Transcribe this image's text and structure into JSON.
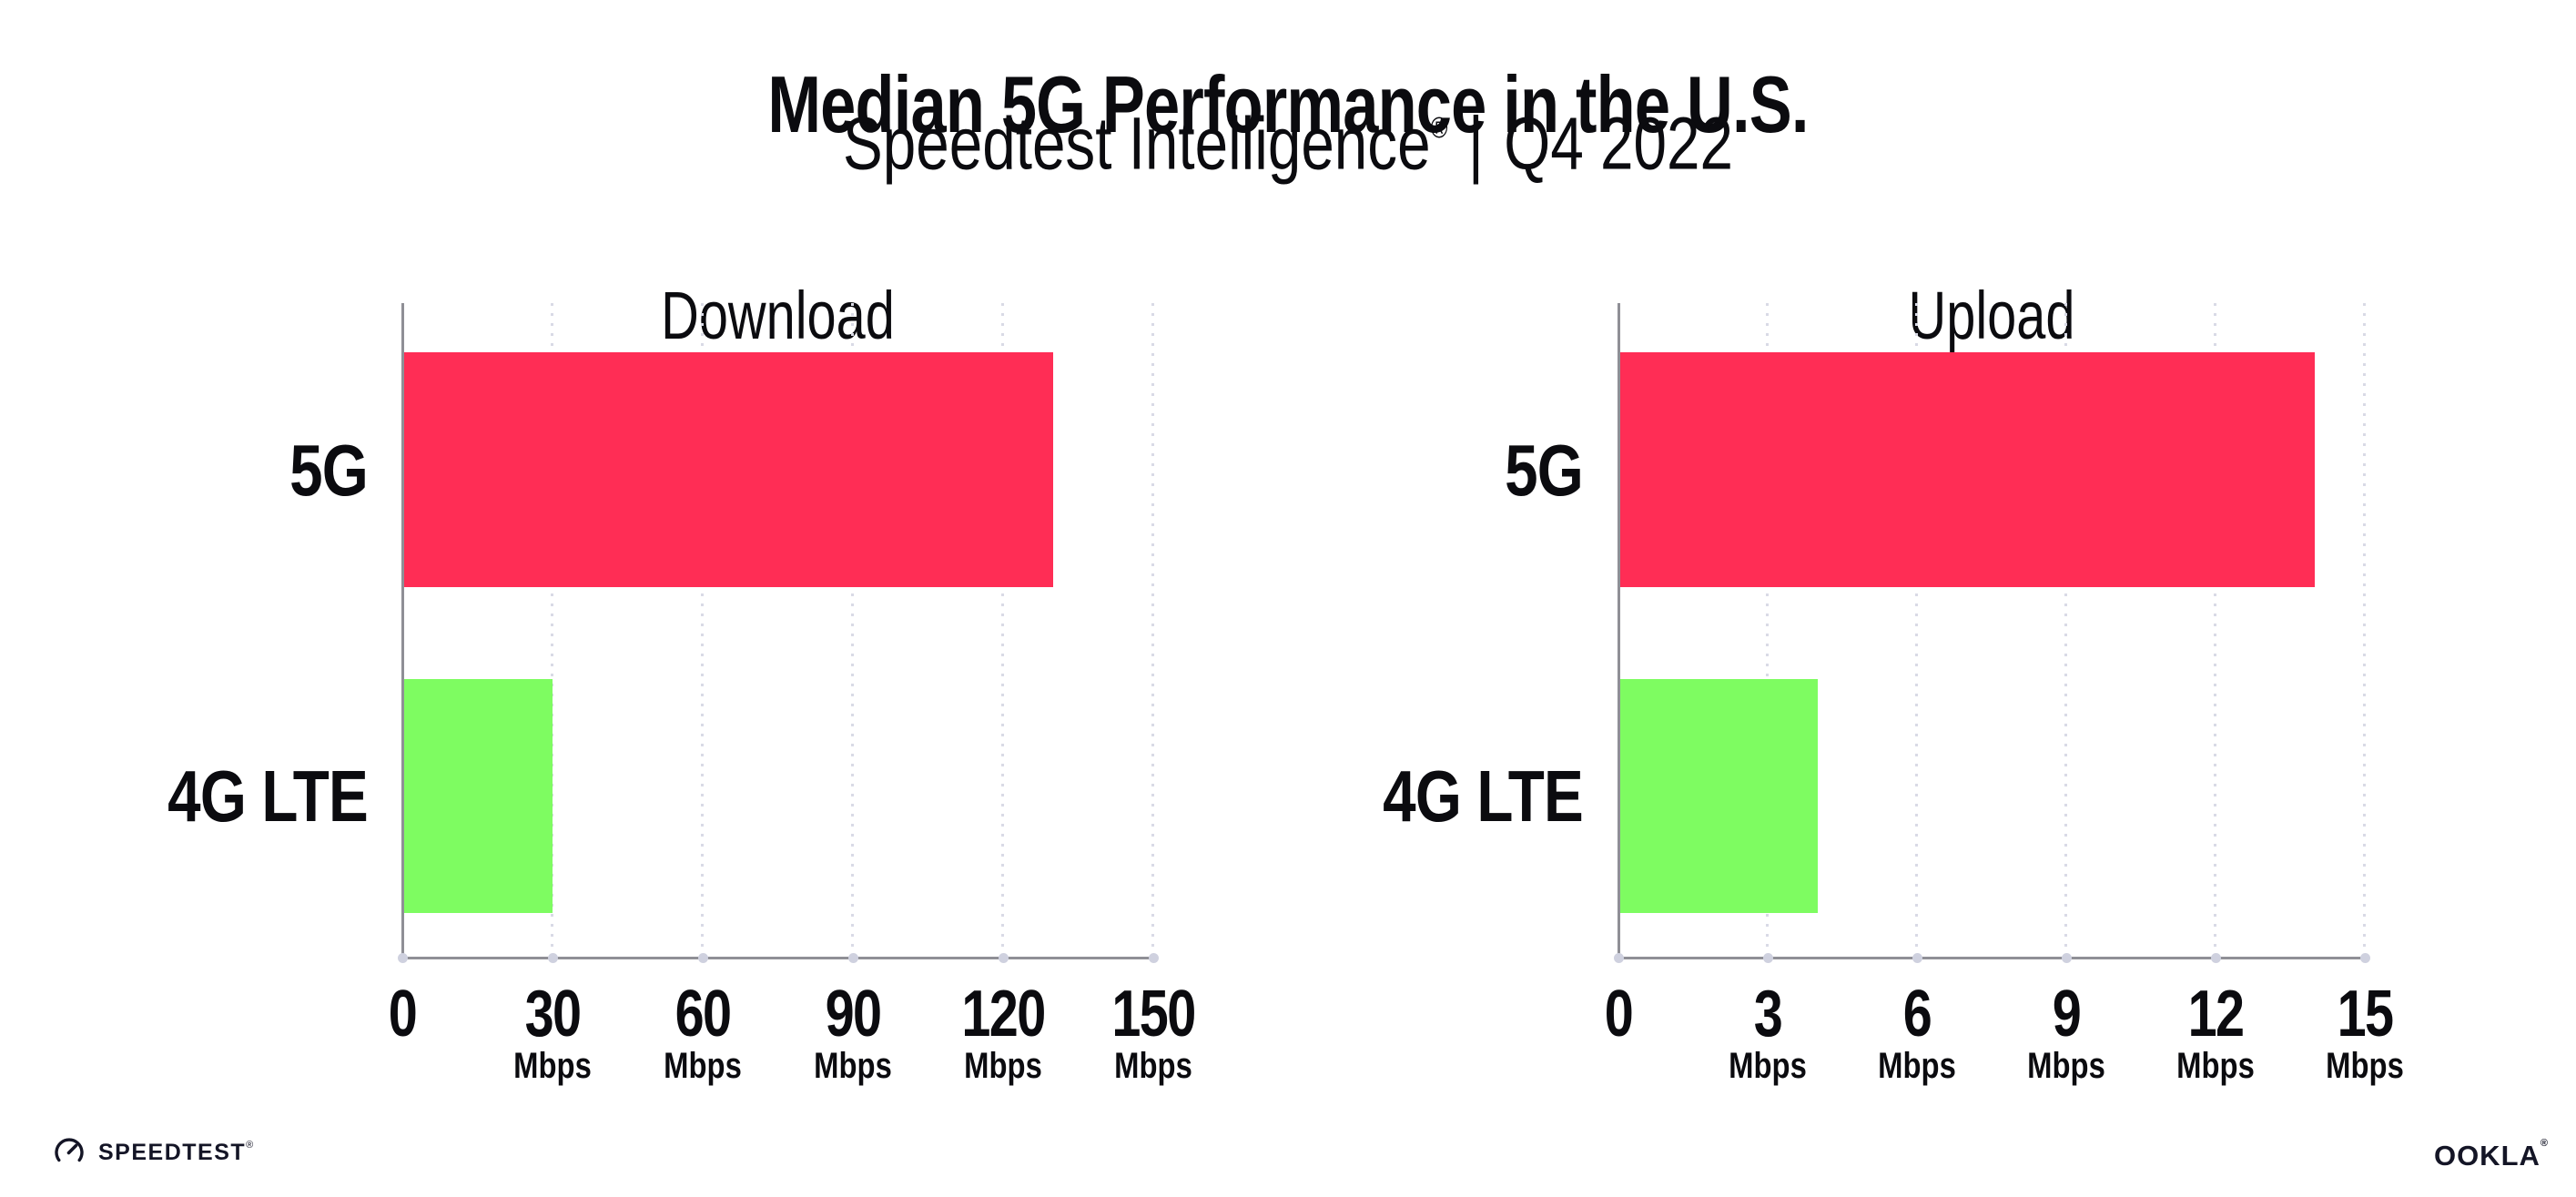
{
  "header": {
    "title": "Median 5G Performance in the U.S.",
    "subtitle": {
      "brand": "Speedtest Intelligence",
      "registered_mark": "®",
      "separator": "|",
      "period": "Q4 2022"
    }
  },
  "chart_data": [
    {
      "type": "bar",
      "orientation": "horizontal",
      "title": "Download",
      "categories": [
        "5G",
        "4G LTE"
      ],
      "values": [
        130,
        30
      ],
      "unit": "Mbps",
      "xlim": [
        0,
        150
      ],
      "xticks": [
        0,
        30,
        60,
        90,
        120,
        150
      ],
      "bar_colors": [
        "#ff2d55",
        "#7efc61"
      ],
      "grid": "dotted-vertical",
      "legend": "none"
    },
    {
      "type": "bar",
      "orientation": "horizontal",
      "title": "Upload",
      "categories": [
        "5G",
        "4G LTE"
      ],
      "values": [
        14,
        4
      ],
      "unit": "Mbps",
      "xlim": [
        0,
        15
      ],
      "xticks": [
        0,
        3,
        6,
        9,
        12,
        15
      ],
      "bar_colors": [
        "#ff2d55",
        "#7efc61"
      ],
      "grid": "dotted-vertical",
      "legend": "none"
    }
  ],
  "footer": {
    "speedtest_text": "SPEEDTEST",
    "speedtest_mark": "®",
    "ookla_text": "OOKLA",
    "ookla_mark": "®"
  },
  "colors": {
    "bar_5g": "#ff2d55",
    "bar_4g_lte": "#7efc61",
    "axis": "#8f8f96",
    "gridline_dots": "#d9dae6",
    "text": "#0b0b0f"
  }
}
